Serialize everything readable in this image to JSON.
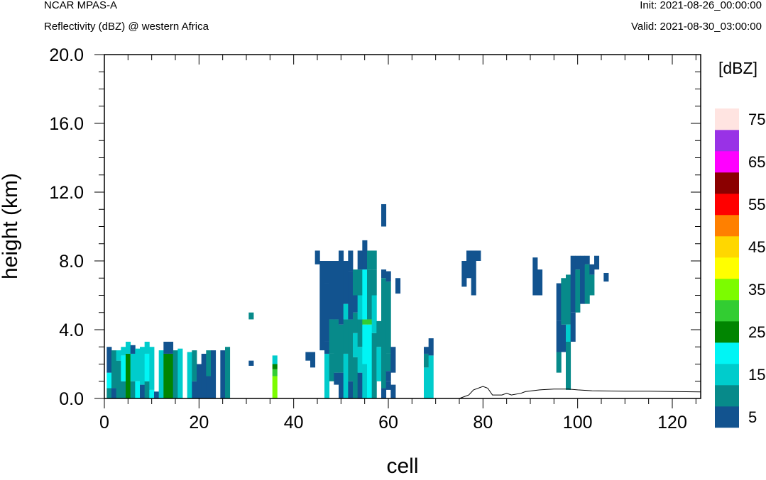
{
  "header": {
    "model": "NCAR MPAS-A",
    "subtitle": "Reflectivity (dBZ) @ western Africa",
    "init": "Init: 2021-08-26_00:00:00",
    "valid": "Valid: 2021-08-30_03:00:00"
  },
  "chart_data": {
    "type": "heatmap",
    "title": "Reflectivity (dBZ) @ western Africa",
    "xlabel": "cell",
    "ylabel": "height (km)",
    "xlim": [
      0,
      126
    ],
    "ylim": [
      0,
      20
    ],
    "x_ticks": [
      "0",
      "20",
      "40",
      "60",
      "80",
      "100",
      "120"
    ],
    "y_ticks": [
      "0.0",
      "4.0",
      "8.0",
      "12.0",
      "16.0",
      "20.0"
    ],
    "colorbar": {
      "unit_label": "[dBZ]",
      "labels": [
        "5",
        "15",
        "25",
        "35",
        "45",
        "55",
        "65",
        "75"
      ],
      "bins": [
        {
          "value": 5,
          "color": "#12538f"
        },
        {
          "value": 10,
          "color": "#078a8a"
        },
        {
          "value": 15,
          "color": "#00cccc"
        },
        {
          "value": 20,
          "color": "#00f5f5"
        },
        {
          "value": 25,
          "color": "#018501"
        },
        {
          "value": 30,
          "color": "#32cd32"
        },
        {
          "value": 35,
          "color": "#7cfc00"
        },
        {
          "value": 40,
          "color": "#ffff00"
        },
        {
          "value": 45,
          "color": "#ffd700"
        },
        {
          "value": 50,
          "color": "#ff8000"
        },
        {
          "value": 55,
          "color": "#ff0000"
        },
        {
          "value": 60,
          "color": "#8b0000"
        },
        {
          "value": 65,
          "color": "#ff00ff"
        },
        {
          "value": 70,
          "color": "#9932e6"
        },
        {
          "value": 75,
          "color": "#ffe4e1"
        }
      ]
    },
    "columns": [
      {
        "x": 1,
        "segments": [
          [
            0.0,
            0.6,
            10
          ],
          [
            0.6,
            1.5,
            20
          ],
          [
            1.5,
            3.0,
            5
          ]
        ]
      },
      {
        "x": 2,
        "segments": [
          [
            0.0,
            0.6,
            5
          ],
          [
            0.6,
            2.8,
            10
          ]
        ]
      },
      {
        "x": 3,
        "segments": [
          [
            0.0,
            2.2,
            10
          ],
          [
            2.2,
            2.8,
            15
          ]
        ]
      },
      {
        "x": 4,
        "segments": [
          [
            0.0,
            1.0,
            10
          ],
          [
            1.0,
            2.5,
            20
          ],
          [
            2.5,
            3.0,
            15
          ]
        ]
      },
      {
        "x": 5,
        "segments": [
          [
            0.0,
            2.6,
            25
          ],
          [
            2.6,
            3.3,
            15
          ]
        ]
      },
      {
        "x": 6,
        "segments": [
          [
            0.0,
            1.0,
            10
          ],
          [
            1.0,
            2.6,
            15
          ],
          [
            2.6,
            3.1,
            5
          ]
        ]
      },
      {
        "x": 7,
        "segments": [
          [
            0.0,
            1.0,
            20
          ],
          [
            1.0,
            2.9,
            15
          ]
        ]
      },
      {
        "x": 8,
        "segments": [
          [
            0.0,
            0.8,
            5
          ],
          [
            0.8,
            3.0,
            15
          ]
        ]
      },
      {
        "x": 9,
        "segments": [
          [
            0.0,
            1.0,
            10
          ],
          [
            1.0,
            2.6,
            20
          ],
          [
            2.6,
            3.3,
            15
          ]
        ]
      },
      {
        "x": 10,
        "segments": [
          [
            0.0,
            0.5,
            20
          ],
          [
            0.5,
            3.0,
            15
          ]
        ]
      },
      {
        "x": 11,
        "segments": [
          [
            0.0,
            0.4,
            5
          ]
        ]
      },
      {
        "x": 12,
        "segments": [
          [
            0.0,
            2.8,
            15
          ]
        ]
      },
      {
        "x": 13,
        "segments": [
          [
            0.0,
            2.6,
            25
          ],
          [
            2.6,
            3.3,
            5
          ]
        ]
      },
      {
        "x": 14,
        "segments": [
          [
            0.0,
            2.6,
            25
          ],
          [
            2.6,
            3.3,
            5
          ]
        ]
      },
      {
        "x": 15,
        "segments": [
          [
            0.0,
            2.8,
            10
          ]
        ]
      },
      {
        "x": 16,
        "segments": [
          [
            0.0,
            2.9,
            15
          ]
        ]
      },
      {
        "x": 18,
        "segments": [
          [
            0.0,
            2.7,
            15
          ]
        ]
      },
      {
        "x": 19,
        "segments": [
          [
            0.0,
            1.0,
            5
          ],
          [
            1.0,
            2.8,
            10
          ]
        ]
      },
      {
        "x": 20,
        "segments": [
          [
            0.0,
            2.0,
            5
          ]
        ]
      },
      {
        "x": 21,
        "segments": [
          [
            0.0,
            2.6,
            5
          ]
        ]
      },
      {
        "x": 22,
        "segments": [
          [
            0.0,
            1.3,
            5
          ],
          [
            1.3,
            2.8,
            10
          ]
        ]
      },
      {
        "x": 23,
        "segments": [
          [
            0.0,
            2.8,
            5
          ]
        ]
      },
      {
        "x": 25,
        "segments": [
          [
            0.0,
            2.8,
            5
          ]
        ]
      },
      {
        "x": 26,
        "segments": [
          [
            0.0,
            3.0,
            10
          ]
        ]
      },
      {
        "x": 31,
        "segments": [
          [
            1.9,
            2.2,
            5
          ],
          [
            4.6,
            5.0,
            10
          ]
        ]
      },
      {
        "x": 36,
        "segments": [
          [
            0.0,
            1.3,
            35
          ],
          [
            1.3,
            1.7,
            30
          ],
          [
            1.7,
            2.0,
            25
          ],
          [
            2.0,
            2.5,
            15
          ]
        ]
      },
      {
        "x": 43,
        "segments": [
          [
            2.2,
            2.7,
            5
          ]
        ]
      },
      {
        "x": 44,
        "segments": [
          [
            1.8,
            2.7,
            5
          ]
        ]
      },
      {
        "x": 45,
        "segments": [
          [
            7.8,
            8.6,
            5
          ]
        ]
      },
      {
        "x": 46,
        "segments": [
          [
            2.8,
            8.0,
            5
          ]
        ]
      },
      {
        "x": 47,
        "segments": [
          [
            0.0,
            2.6,
            15
          ],
          [
            2.6,
            3.3,
            5
          ],
          [
            3.3,
            6.7,
            5
          ],
          [
            6.7,
            8.0,
            5
          ]
        ]
      },
      {
        "x": 48,
        "segments": [
          [
            1.0,
            2.6,
            10
          ],
          [
            2.6,
            4.6,
            10
          ],
          [
            4.6,
            8.0,
            5
          ]
        ]
      },
      {
        "x": 49,
        "segments": [
          [
            0.8,
            1.5,
            5
          ],
          [
            1.5,
            4.6,
            10
          ],
          [
            4.6,
            8.0,
            5
          ]
        ]
      },
      {
        "x": 50,
        "segments": [
          [
            0.0,
            1.5,
            5
          ],
          [
            1.5,
            4.3,
            10
          ],
          [
            4.3,
            8.6,
            5
          ]
        ]
      },
      {
        "x": 51,
        "segments": [
          [
            0.0,
            2.6,
            15
          ],
          [
            2.6,
            4.6,
            10
          ],
          [
            4.6,
            5.5,
            15
          ],
          [
            5.5,
            8.0,
            5
          ]
        ]
      },
      {
        "x": 52,
        "segments": [
          [
            0.0,
            1.0,
            5
          ],
          [
            1.0,
            4.6,
            10
          ],
          [
            4.6,
            7.4,
            5
          ],
          [
            7.4,
            8.6,
            5
          ]
        ]
      },
      {
        "x": 53,
        "segments": [
          [
            0.0,
            2.4,
            10
          ],
          [
            2.4,
            3.8,
            15
          ],
          [
            3.8,
            5.0,
            10
          ],
          [
            5.0,
            6.0,
            5
          ],
          [
            6.0,
            7.5,
            10
          ]
        ]
      },
      {
        "x": 54,
        "segments": [
          [
            0.0,
            1.5,
            5
          ],
          [
            1.5,
            3.0,
            15
          ],
          [
            3.0,
            4.6,
            10
          ],
          [
            4.6,
            6.0,
            15
          ],
          [
            6.0,
            7.5,
            10
          ],
          [
            7.5,
            8.6,
            5
          ]
        ]
      },
      {
        "x": 55,
        "segments": [
          [
            0.0,
            2.0,
            15
          ],
          [
            2.0,
            4.3,
            20
          ],
          [
            4.3,
            4.6,
            30
          ],
          [
            4.6,
            7.5,
            20
          ],
          [
            7.5,
            9.2,
            5
          ]
        ]
      },
      {
        "x": 56,
        "segments": [
          [
            0.0,
            4.3,
            20
          ],
          [
            4.3,
            4.6,
            30
          ],
          [
            4.6,
            7.5,
            10
          ],
          [
            7.5,
            8.6,
            10
          ]
        ]
      },
      {
        "x": 57,
        "segments": [
          [
            0.0,
            3.8,
            10
          ],
          [
            3.8,
            6.0,
            15
          ],
          [
            6.0,
            7.5,
            10
          ],
          [
            7.5,
            8.6,
            10
          ]
        ]
      },
      {
        "x": 58,
        "segments": [
          [
            1.0,
            3.0,
            15
          ],
          [
            3.0,
            4.5,
            10
          ]
        ]
      },
      {
        "x": 59,
        "segments": [
          [
            0.0,
            0.6,
            5
          ],
          [
            0.6,
            7.0,
            10
          ],
          [
            7.0,
            7.5,
            5
          ],
          [
            10.0,
            11.3,
            5
          ]
        ]
      },
      {
        "x": 60,
        "segments": [
          [
            0.5,
            1.0,
            5
          ],
          [
            1.0,
            1.6,
            5
          ],
          [
            1.6,
            2.6,
            10
          ],
          [
            2.6,
            6.8,
            10
          ],
          [
            6.8,
            7.4,
            5
          ]
        ]
      },
      {
        "x": 61,
        "segments": [
          [
            0.0,
            0.8,
            5
          ],
          [
            1.5,
            3.0,
            5
          ]
        ]
      },
      {
        "x": 62,
        "segments": [
          [
            6.1,
            7.0,
            5
          ]
        ]
      },
      {
        "x": 68,
        "segments": [
          [
            0.0,
            1.8,
            15
          ],
          [
            1.8,
            2.6,
            10
          ],
          [
            2.6,
            3.0,
            5
          ]
        ]
      },
      {
        "x": 69,
        "segments": [
          [
            0.0,
            2.5,
            15
          ],
          [
            2.5,
            3.5,
            5
          ]
        ]
      },
      {
        "x": 76,
        "segments": [
          [
            6.5,
            8.0,
            5
          ]
        ]
      },
      {
        "x": 77,
        "segments": [
          [
            7.0,
            8.6,
            5
          ]
        ]
      },
      {
        "x": 78,
        "segments": [
          [
            6.0,
            8.6,
            5
          ]
        ]
      },
      {
        "x": 79,
        "segments": [
          [
            8.0,
            8.6,
            5
          ]
        ]
      },
      {
        "x": 91,
        "segments": [
          [
            6.0,
            8.2,
            5
          ]
        ]
      },
      {
        "x": 92,
        "segments": [
          [
            6.0,
            7.5,
            5
          ]
        ]
      },
      {
        "x": 96,
        "segments": [
          [
            1.5,
            2.7,
            10
          ],
          [
            2.7,
            4.5,
            5
          ],
          [
            4.5,
            6.7,
            5
          ]
        ]
      },
      {
        "x": 97,
        "segments": [
          [
            2.7,
            4.3,
            5
          ],
          [
            4.3,
            7.0,
            10
          ]
        ]
      },
      {
        "x": 98,
        "segments": [
          [
            0.5,
            3.3,
            10
          ],
          [
            3.3,
            4.3,
            15
          ],
          [
            4.3,
            7.2,
            10
          ]
        ]
      },
      {
        "x": 99,
        "segments": [
          [
            3.3,
            5.0,
            5
          ],
          [
            5.0,
            8.3,
            5
          ]
        ]
      },
      {
        "x": 100,
        "segments": [
          [
            5.0,
            7.5,
            10
          ],
          [
            7.5,
            8.3,
            5
          ]
        ]
      },
      {
        "x": 101,
        "segments": [
          [
            5.5,
            8.3,
            5
          ]
        ]
      },
      {
        "x": 102,
        "segments": [
          [
            5.5,
            7.8,
            10
          ],
          [
            7.8,
            8.3,
            5
          ]
        ]
      },
      {
        "x": 103,
        "segments": [
          [
            6.0,
            7.2,
            10
          ],
          [
            7.2,
            7.8,
            5
          ]
        ]
      },
      {
        "x": 104,
        "segments": [
          [
            7.5,
            8.3,
            5
          ]
        ]
      },
      {
        "x": 106,
        "segments": [
          [
            6.8,
            7.3,
            5
          ]
        ]
      }
    ],
    "terrain": [
      [
        75,
        0.0
      ],
      [
        77,
        0.2
      ],
      [
        78,
        0.5
      ],
      [
        80,
        0.7
      ],
      [
        81,
        0.6
      ],
      [
        82,
        0.2
      ],
      [
        84,
        0.2
      ],
      [
        85,
        0.3
      ],
      [
        86,
        0.2
      ],
      [
        88,
        0.3
      ],
      [
        89,
        0.4
      ],
      [
        92,
        0.5
      ],
      [
        95,
        0.55
      ],
      [
        98,
        0.55
      ],
      [
        100,
        0.5
      ],
      [
        103,
        0.45
      ],
      [
        110,
        0.42
      ],
      [
        115,
        0.42
      ],
      [
        120,
        0.4
      ],
      [
        126,
        0.38
      ]
    ]
  }
}
